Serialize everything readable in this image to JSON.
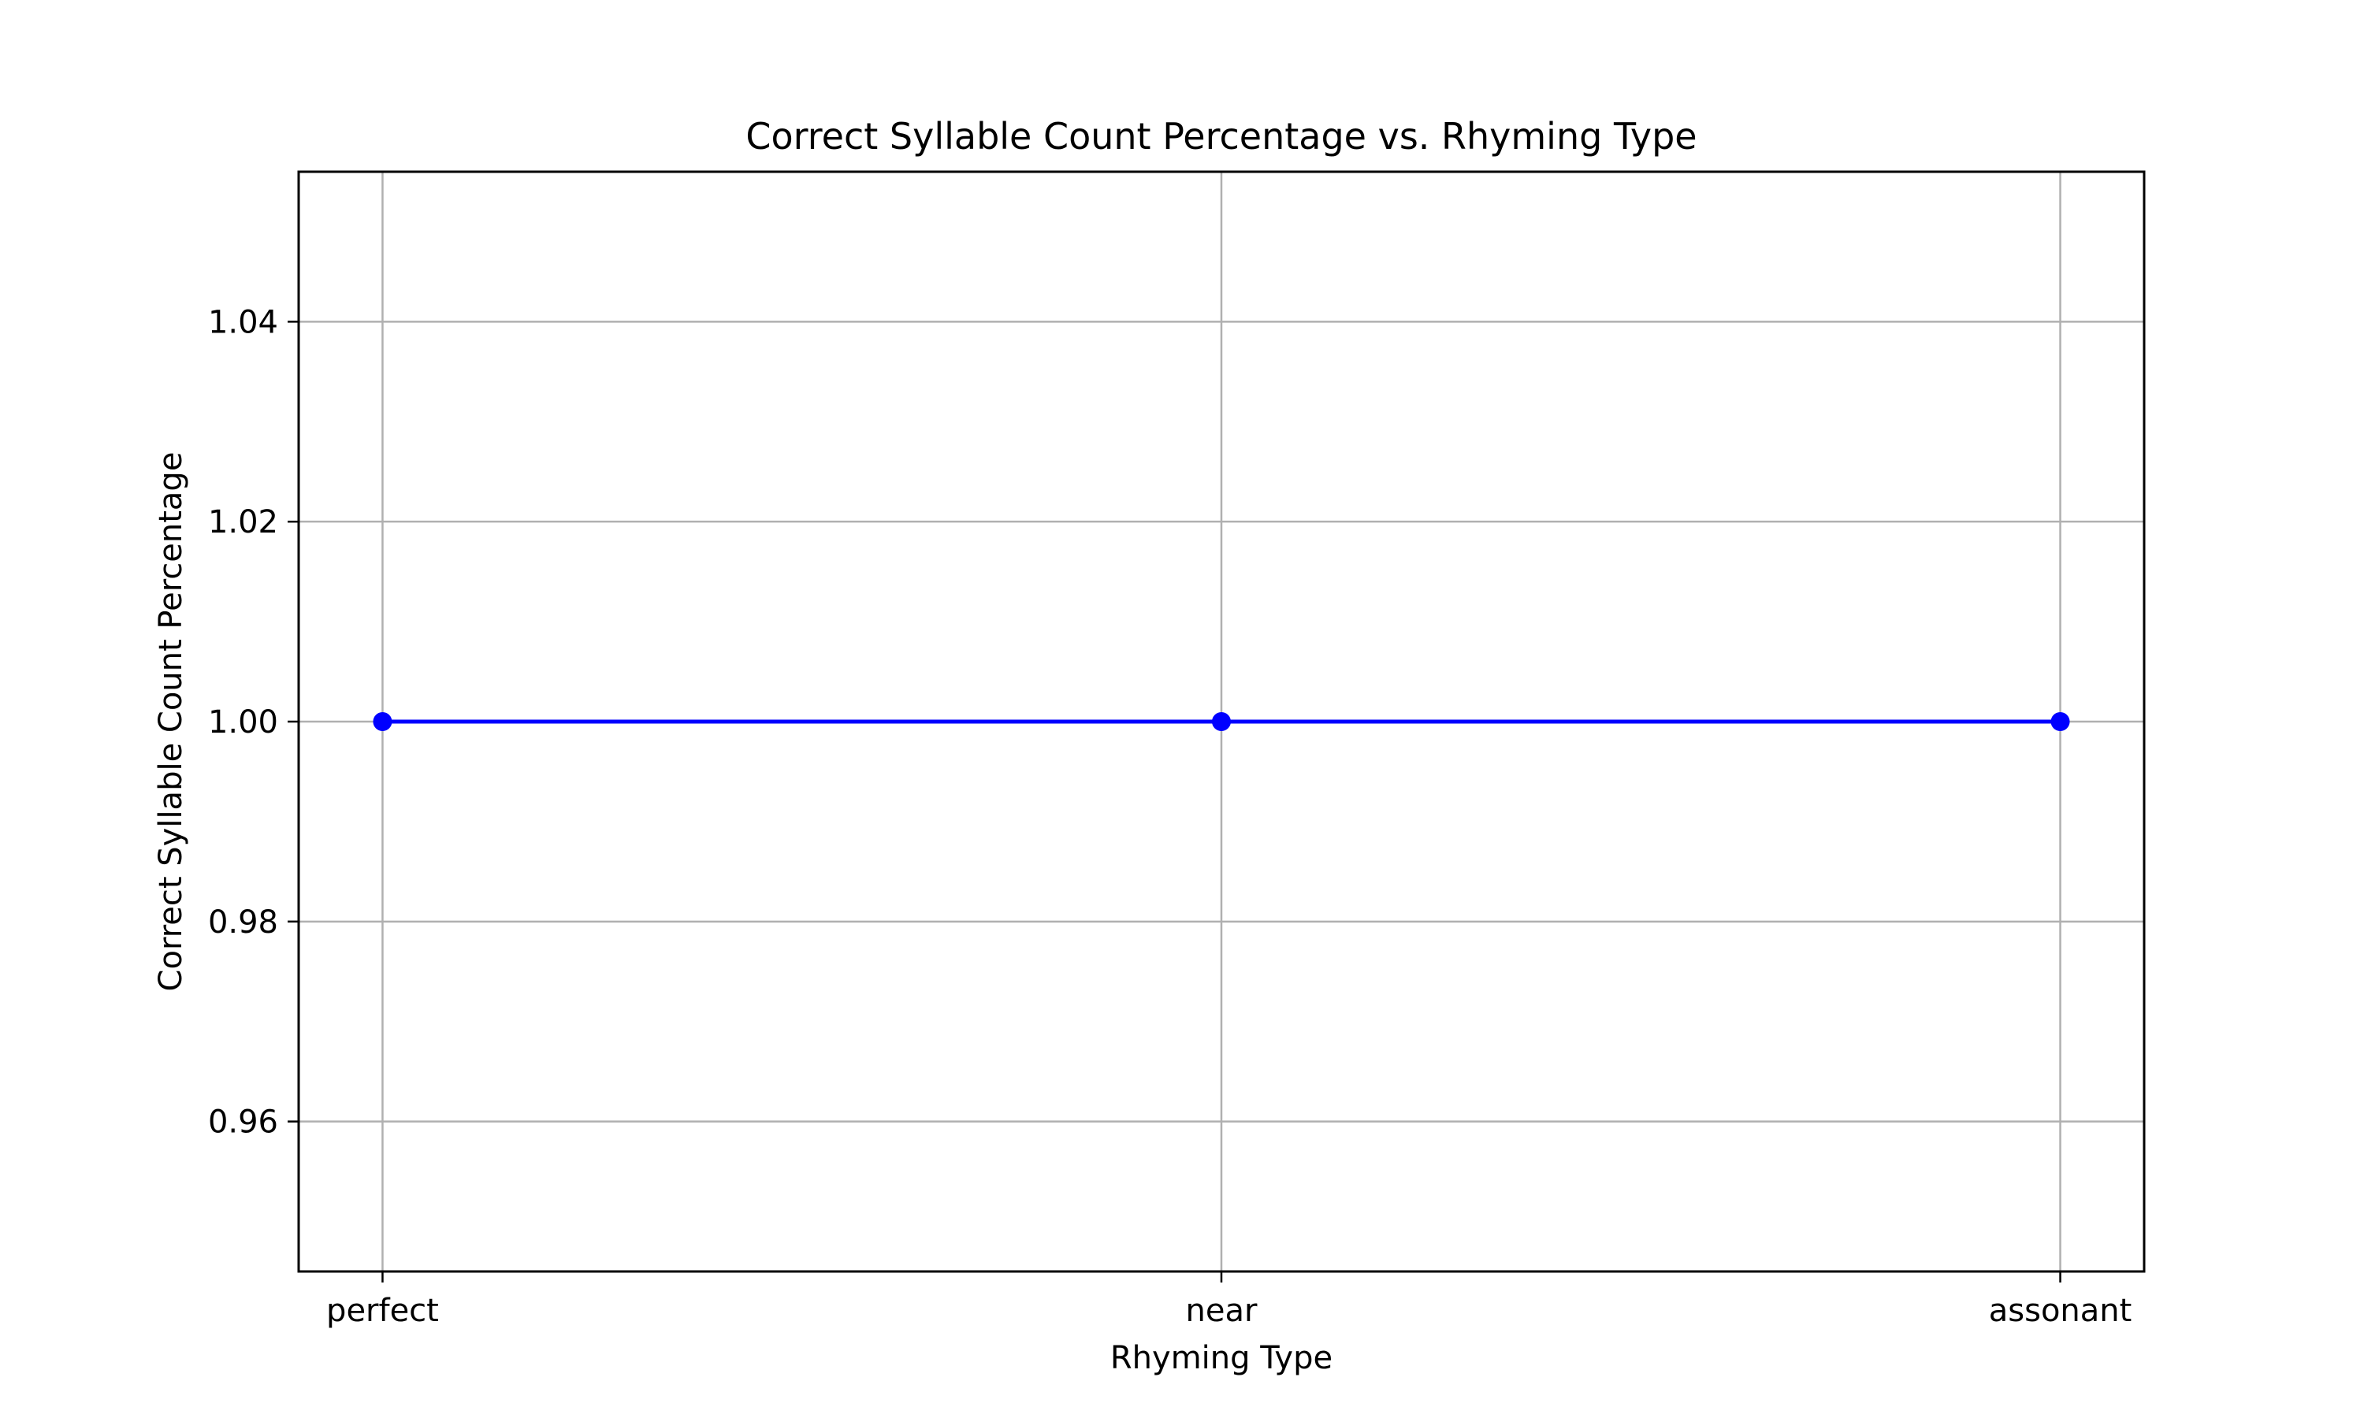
{
  "chart_data": {
    "type": "line",
    "title": "Correct Syllable Count Percentage vs. Rhyming Type",
    "xlabel": "Rhyming Type",
    "ylabel": "Correct Syllable Count Percentage",
    "categories": [
      "perfect",
      "near",
      "assonant"
    ],
    "series": [
      {
        "values": [
          1.0,
          1.0,
          1.0
        ],
        "color": "#0000ff",
        "marker": "circle"
      }
    ],
    "ylim": [
      0.945,
      1.055
    ],
    "yticks": [
      0.96,
      0.98,
      1.0,
      1.02,
      1.04
    ],
    "ytick_labels": [
      "0.96",
      "0.98",
      "1.00",
      "1.02",
      "1.04"
    ],
    "grid": true,
    "legend": "none"
  }
}
